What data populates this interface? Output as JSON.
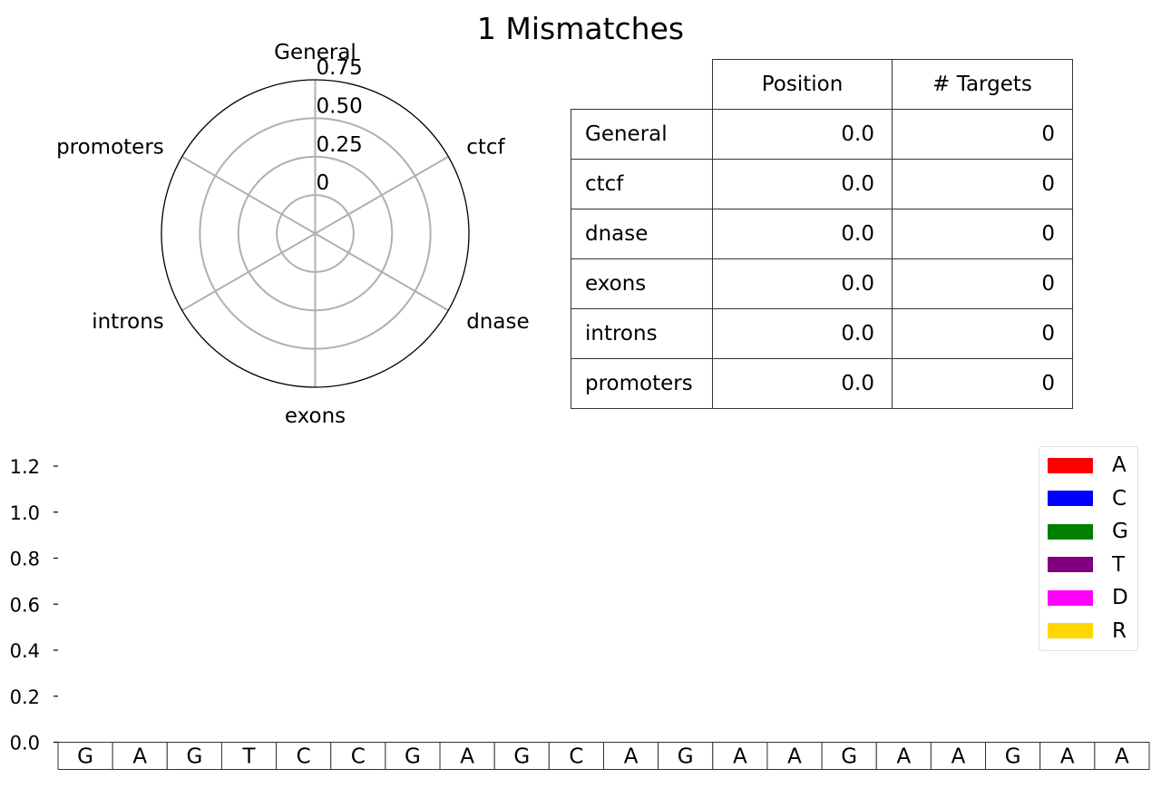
{
  "title": "1 Mismatches",
  "chart_data": [
    {
      "type": "radar",
      "categories": [
        "General",
        "ctcf",
        "dnase",
        "exons",
        "introns",
        "promoters"
      ],
      "values": [
        0,
        0,
        0,
        0,
        0,
        0
      ],
      "r_ticks": [
        "0",
        "0.25",
        "0.50",
        "0.75"
      ],
      "r_values": [
        0,
        0.25,
        0.5,
        0.75
      ],
      "rlim": [
        -0.25,
        0.75
      ],
      "grid": true
    },
    {
      "type": "table",
      "columns": [
        "Position",
        "# Targets"
      ],
      "rows": [
        {
          "label": "General",
          "position": "0.0",
          "targets": "0"
        },
        {
          "label": "ctcf",
          "position": "0.0",
          "targets": "0"
        },
        {
          "label": "dnase",
          "position": "0.0",
          "targets": "0"
        },
        {
          "label": "exons",
          "position": "0.0",
          "targets": "0"
        },
        {
          "label": "introns",
          "position": "0.0",
          "targets": "0"
        },
        {
          "label": "promoters",
          "position": "0.0",
          "targets": "0"
        }
      ]
    },
    {
      "type": "bar",
      "stacked": true,
      "categories": [
        "G",
        "A",
        "G",
        "T",
        "C",
        "C",
        "G",
        "A",
        "G",
        "C",
        "A",
        "G",
        "A",
        "A",
        "G",
        "A",
        "A",
        "G",
        "A",
        "A"
      ],
      "series": [
        {
          "name": "A",
          "color": "#ff0000",
          "values": [
            0,
            0,
            0,
            0,
            0,
            0,
            0,
            0,
            0,
            0,
            0,
            0,
            0,
            0,
            0,
            0,
            0,
            0,
            0,
            0
          ]
        },
        {
          "name": "C",
          "color": "#0000ff",
          "values": [
            0,
            0,
            0,
            0,
            0,
            0,
            0,
            0,
            0,
            0,
            0,
            0,
            0,
            0,
            0,
            0,
            0,
            0,
            0,
            0
          ]
        },
        {
          "name": "G",
          "color": "#008000",
          "values": [
            0,
            0,
            0,
            0,
            0,
            0,
            0,
            0,
            0,
            0,
            0,
            0,
            0,
            0,
            0,
            0,
            0,
            0,
            0,
            0
          ]
        },
        {
          "name": "T",
          "color": "#800080",
          "values": [
            0,
            0,
            0,
            0,
            0,
            0,
            0,
            0,
            0,
            0,
            0,
            0,
            0,
            0,
            0,
            0,
            0,
            0,
            0,
            0
          ]
        },
        {
          "name": "D",
          "color": "#ff00ff",
          "values": [
            0,
            0,
            0,
            0,
            0,
            0,
            0,
            0,
            0,
            0,
            0,
            0,
            0,
            0,
            0,
            0,
            0,
            0,
            0,
            0
          ]
        },
        {
          "name": "R",
          "color": "#ffd700",
          "values": [
            0,
            0,
            0,
            0,
            0,
            0,
            0,
            0,
            0,
            0,
            0,
            0,
            0,
            0,
            0,
            0,
            0,
            0,
            0,
            0
          ]
        }
      ],
      "yticks": [
        "0.0",
        "0.2",
        "0.4",
        "0.6",
        "0.8",
        "1.0",
        "1.2"
      ],
      "ytick_values": [
        0,
        0.2,
        0.4,
        0.6,
        0.8,
        1.0,
        1.2
      ],
      "ylim": [
        0,
        1.2
      ],
      "legend_position": "top-right",
      "grid": false
    }
  ]
}
